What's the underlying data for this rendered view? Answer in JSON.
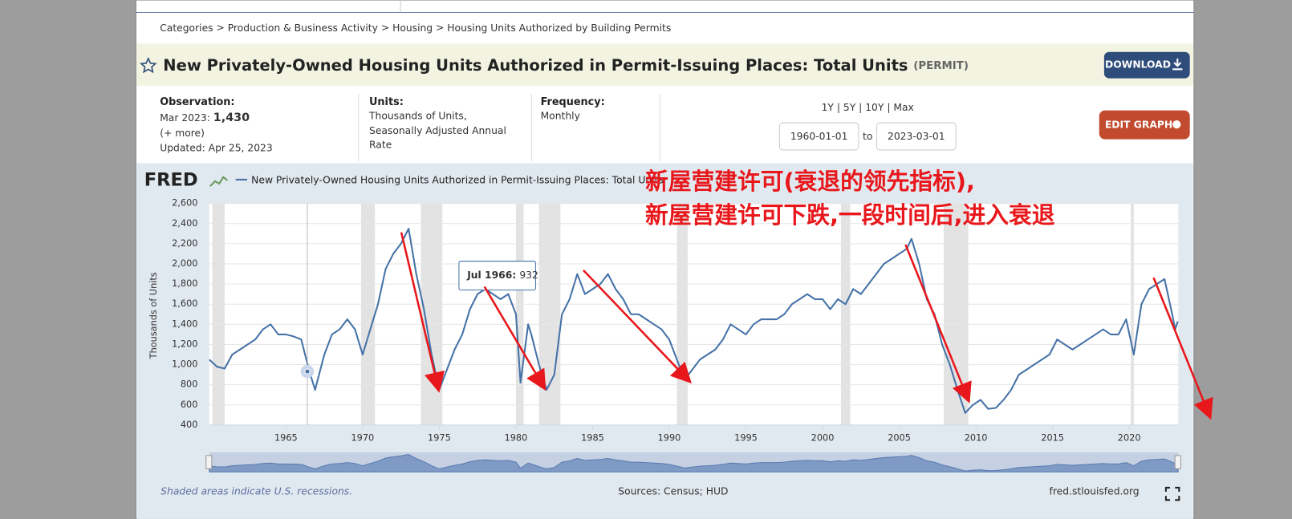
{
  "page": {
    "breadcrumb": [
      "Categories",
      "Production & Business Activity",
      "Housing",
      "Housing Units Authorized by Building Permits"
    ],
    "title": "New Privately-Owned Housing Units Authorized in Permit-Issuing Places: Total Units",
    "series_id": "(PERMIT)",
    "download": "DOWNLOAD",
    "edit_graph": "EDIT GRAPH",
    "observation_label": "Observation:",
    "observation_date": "Mar 2023:",
    "observation_value": "1,430",
    "more": "(+ more)",
    "updated": "Updated: Apr 25, 2023",
    "units_label": "Units:",
    "units": [
      "Thousands of Units,",
      "Seasonally Adjusted Annual",
      "Rate"
    ],
    "frequency_label": "Frequency:",
    "frequency": "Monthly",
    "ranges": "1Y | 5Y | 10Y | Max",
    "start_date": "1960-01-01",
    "to": "to",
    "end_date": "2023-03-01",
    "logo": "FRED",
    "footer_note": "Shaded areas indicate U.S. recessions.",
    "sources": "Sources: Census; HUD",
    "site": "fred.stlouisfed.org"
  },
  "chart_data": {
    "type": "line",
    "y_label": "Thousands of Units",
    "annotations": [
      "新屋营建许可(衰退的领先指标),",
      "新屋营建许可下跌,一段时间后,进入衰退"
    ],
    "tooltip": {
      "label": "Jul 1966:",
      "value": 932
    },
    "xlim": [
      1960,
      2023.2
    ],
    "xticks": [
      1965,
      1970,
      1975,
      1980,
      1985,
      1990,
      1995,
      2000,
      2005,
      2010,
      2015,
      2020
    ],
    "ylim": [
      400,
      2600
    ],
    "yticks": [
      400,
      600,
      800,
      {
        "value": 1000,
        "label": "1,000"
      },
      {
        "value": 1200,
        "label": "1,200"
      },
      {
        "value": 1400,
        "label": "1,400"
      },
      {
        "value": 1600,
        "label": "1,600"
      },
      {
        "value": 1800,
        "label": "1,800"
      },
      {
        "value": 2000,
        "label": "2,000"
      },
      {
        "value": 2200,
        "label": "2,200"
      },
      {
        "value": 2400,
        "label": "2,400"
      },
      {
        "value": 2600,
        "label": "2,600"
      }
    ],
    "grid": true,
    "recessions": [
      [
        1960.2,
        1961
      ],
      [
        1969.9,
        1970.8
      ],
      [
        1973.8,
        1975.2
      ],
      [
        1980,
        1980.5
      ],
      [
        1981.5,
        1982.9
      ],
      [
        1990.5,
        1991.2
      ],
      [
        2001.2,
        2001.8
      ],
      [
        2007.9,
        2009.5
      ],
      [
        2020.1,
        2020.3
      ]
    ],
    "x": [
      1960,
      1960.5,
      1961,
      1961.5,
      1962,
      1962.5,
      1963,
      1963.5,
      1964,
      1964.5,
      1965,
      1965.5,
      1966,
      1966.5,
      1966.9,
      1967.5,
      1968,
      1968.5,
      1969,
      1969.5,
      1970,
      1970.5,
      1971,
      1971.5,
      1972,
      1972.5,
      1973,
      1973.5,
      1974,
      1974.5,
      1975,
      1975.5,
      1976,
      1976.5,
      1977,
      1977.5,
      1978,
      1978.5,
      1979,
      1979.5,
      1980,
      1980.3,
      1980.8,
      1981,
      1981.5,
      1982,
      1982.5,
      1983,
      1983.5,
      1984,
      1984.5,
      1985,
      1985.5,
      1986,
      1986.5,
      1987,
      1987.5,
      1988,
      1988.5,
      1989,
      1989.5,
      1990,
      1990.5,
      1991,
      1991.5,
      1992,
      1992.5,
      1993,
      1993.5,
      1994,
      1994.5,
      1995,
      1995.5,
      1996,
      1996.5,
      1997,
      1997.5,
      1998,
      1998.5,
      1999,
      1999.5,
      2000,
      2000.5,
      2001,
      2001.5,
      2002,
      2002.5,
      2003,
      2003.5,
      2004,
      2004.5,
      2005,
      2005.5,
      2005.8,
      2006.3,
      2006.8,
      2007.3,
      2007.8,
      2008.3,
      2008.8,
      2009.3,
      2009.8,
      2010.3,
      2010.8,
      2011.3,
      2011.8,
      2012.3,
      2012.8,
      2013.3,
      2013.8,
      2014.3,
      2014.8,
      2015.3,
      2015.8,
      2016.3,
      2016.8,
      2017.3,
      2017.8,
      2018.3,
      2018.8,
      2019.3,
      2019.8,
      2020.3,
      2020.8,
      2021.3,
      2021.8,
      2022.3,
      2022.8,
      2023,
      2023.17
    ],
    "series": [
      {
        "name": "New Privately-Owned Housing Units Authorized in Permit-Issuing Places: Total Units",
        "color": "#4572a7",
        "values": [
          1050,
          980,
          960,
          1100,
          1150,
          1200,
          1250,
          1350,
          1400,
          1300,
          1300,
          1280,
          1250,
          950,
          750,
          1100,
          1300,
          1350,
          1450,
          1350,
          1100,
          1350,
          1600,
          1950,
          2100,
          2200,
          2350,
          1900,
          1550,
          1100,
          750,
          950,
          1150,
          1300,
          1550,
          1700,
          1750,
          1700,
          1650,
          1700,
          1500,
          820,
          1400,
          1300,
          1000,
          750,
          900,
          1500,
          1650,
          1900,
          1700,
          1750,
          1800,
          1900,
          1750,
          1650,
          1500,
          1500,
          1450,
          1400,
          1350,
          1250,
          1050,
          850,
          950,
          1050,
          1100,
          1150,
          1250,
          1400,
          1350,
          1300,
          1400,
          1450,
          1450,
          1450,
          1500,
          1600,
          1650,
          1700,
          1650,
          1650,
          1550,
          1650,
          1600,
          1750,
          1700,
          1800,
          1900,
          2000,
          2050,
          2100,
          2150,
          2250,
          2000,
          1650,
          1500,
          1200,
          1000,
          750,
          520,
          600,
          650,
          560,
          570,
          650,
          750,
          900,
          950,
          1000,
          1050,
          1100,
          1250,
          1200,
          1150,
          1200,
          1250,
          1300,
          1350,
          1300,
          1300,
          1450,
          1100,
          1600,
          1750,
          1800,
          1850,
          1500,
          1350,
          1430
        ]
      }
    ]
  }
}
